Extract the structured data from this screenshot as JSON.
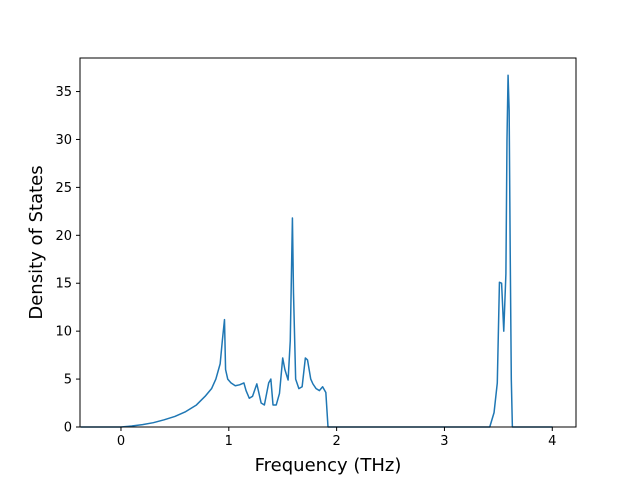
{
  "chart_data": {
    "type": "line",
    "title": "",
    "xlabel": "Frequency (THz)",
    "ylabel": "Density of States",
    "xlim": [
      -0.38,
      4.22
    ],
    "ylim": [
      0,
      38.5
    ],
    "grid": false,
    "x_ticks": [
      0,
      1,
      2,
      3,
      4
    ],
    "x_tick_labels": [
      "0",
      "1",
      "2",
      "3",
      "4"
    ],
    "y_ticks": [
      0,
      5,
      10,
      15,
      20,
      25,
      30,
      35
    ],
    "y_tick_labels": [
      "0",
      "5",
      "10",
      "15",
      "20",
      "25",
      "30",
      "35"
    ],
    "series": [
      {
        "color": "#1f77b4",
        "x": [
          -0.37,
          0,
          0.1,
          0.2,
          0.3,
          0.4,
          0.5,
          0.6,
          0.7,
          0.78,
          0.84,
          0.88,
          0.92,
          0.94,
          0.96,
          0.97,
          0.99,
          1.02,
          1.06,
          1.1,
          1.14,
          1.16,
          1.19,
          1.22,
          1.26,
          1.3,
          1.33,
          1.37,
          1.39,
          1.41,
          1.44,
          1.47,
          1.5,
          1.52,
          1.55,
          1.57,
          1.59,
          1.6,
          1.62,
          1.65,
          1.68,
          1.71,
          1.73,
          1.76,
          1.78,
          1.81,
          1.84,
          1.87,
          1.9,
          1.92,
          1.94,
          1.95,
          2.0,
          2.5,
          3.0,
          3.42,
          3.46,
          3.49,
          3.51,
          3.53,
          3.55,
          3.57,
          3.58,
          3.59,
          3.6,
          3.61,
          3.62,
          3.63,
          3.64,
          3.7,
          4.0
        ],
        "y": [
          0,
          0,
          0.1,
          0.25,
          0.45,
          0.75,
          1.1,
          1.6,
          2.3,
          3.2,
          4.0,
          5.0,
          6.6,
          9.0,
          11.2,
          6.0,
          5.0,
          4.6,
          4.3,
          4.4,
          4.6,
          3.8,
          3.0,
          3.2,
          4.5,
          2.5,
          2.3,
          4.6,
          5.0,
          2.3,
          2.3,
          3.5,
          7.2,
          6.0,
          4.9,
          9.0,
          21.8,
          14.0,
          5.0,
          4.0,
          4.2,
          7.2,
          7.0,
          5.0,
          4.5,
          4.0,
          3.8,
          4.2,
          3.6,
          0,
          0,
          0,
          0,
          0,
          0,
          0,
          1.5,
          4.6,
          15.1,
          15.0,
          10.0,
          16.0,
          30.0,
          36.7,
          33.0,
          18.0,
          5.0,
          0,
          0,
          0,
          0
        ]
      }
    ]
  }
}
